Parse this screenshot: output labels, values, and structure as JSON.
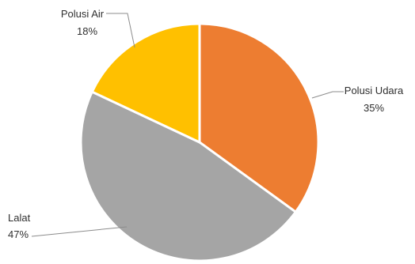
{
  "chart_data": {
    "type": "pie",
    "title": "",
    "slices": [
      {
        "label": "Polusi Udara",
        "value_label": "35%",
        "value": 35,
        "color": "#ED7D31"
      },
      {
        "label": "Lalat",
        "value_label": "47%",
        "value": 47,
        "color": "#A5A5A5"
      },
      {
        "label": "Polusi Air",
        "value_label": "18%",
        "value": 18,
        "color": "#FFC000"
      }
    ],
    "start_angle_deg": 0,
    "direction": "clockwise",
    "legend": "none",
    "labels": "outside-with-leader-lines"
  }
}
